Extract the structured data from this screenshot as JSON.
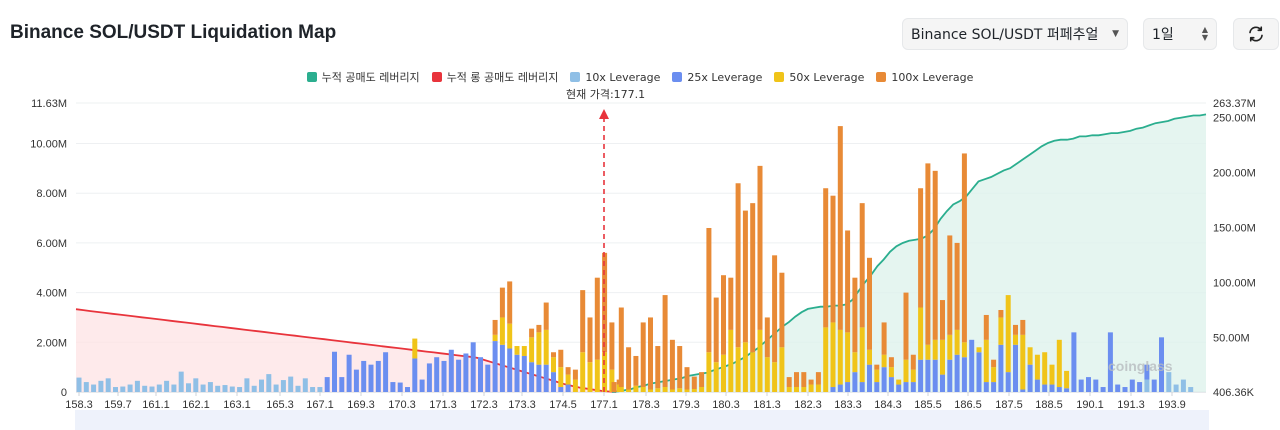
{
  "header": {
    "title": "Binance SOL/USDT Liquidation Map",
    "market_select": "Binance SOL/USDT 퍼페추얼",
    "period_select": "1일",
    "refresh_icon": "refresh-icon"
  },
  "legend": {
    "items": [
      {
        "label": "누적 공매도 레버리지",
        "color": "#2bae8f"
      },
      {
        "label": "누적 롱 공매도 레버리지",
        "color": "#e8343c"
      },
      {
        "label": "10x Leverage",
        "color": "#8fbfe6"
      },
      {
        "label": "25x Leverage",
        "color": "#6b8ef0"
      },
      {
        "label": "50x Leverage",
        "color": "#f0c419"
      },
      {
        "label": "100x Leverage",
        "color": "#e88a36"
      }
    ]
  },
  "current_price_label": "현재 가격:177.1",
  "watermark": "coinglass",
  "chart_data": {
    "type": "bar",
    "current_price": 177.1,
    "x_tick_labels": [
      "158.3",
      "159.7",
      "161.1",
      "162.1",
      "163.1",
      "165.3",
      "167.1",
      "169.3",
      "170.3",
      "171.3",
      "172.3",
      "173.3",
      "174.5",
      "177.1",
      "178.3",
      "179.3",
      "180.3",
      "181.3",
      "182.3",
      "183.3",
      "184.3",
      "185.5",
      "186.5",
      "187.5",
      "188.5",
      "190.1",
      "191.3",
      "193.9"
    ],
    "y_left_ticks": [
      "0",
      "2.00M",
      "4.00M",
      "6.00M",
      "8.00M",
      "10.00M",
      "11.63M"
    ],
    "y_left_values": [
      0,
      2,
      4,
      6,
      8,
      10,
      11.63
    ],
    "y_right_ticks": [
      "406.36K",
      "50.00M",
      "100.00M",
      "150.00M",
      "200.00M",
      "250.00M",
      "263.37M"
    ],
    "y_right_values": [
      0.40636,
      50,
      100,
      150,
      200,
      250,
      263.37
    ],
    "ylim_left": [
      0,
      11.63
    ],
    "ylim_right": [
      0.40636,
      263.37
    ],
    "bars_left_millions": [
      {
        "v10": 0.58
      },
      {
        "v10": 0.4
      },
      {
        "v10": 0.3
      },
      {
        "v10": 0.45
      },
      {
        "v10": 0.55
      },
      {
        "v10": 0.2
      },
      {
        "v10": 0.22
      },
      {
        "v10": 0.3
      },
      {
        "v10": 0.45
      },
      {
        "v10": 0.25
      },
      {
        "v10": 0.22
      },
      {
        "v10": 0.3
      },
      {
        "v10": 0.45
      },
      {
        "v10": 0.3
      },
      {
        "v10": 0.82
      },
      {
        "v10": 0.35
      },
      {
        "v10": 0.55
      },
      {
        "v10": 0.3
      },
      {
        "v10": 0.4
      },
      {
        "v10": 0.25
      },
      {
        "v10": 0.28
      },
      {
        "v10": 0.22
      },
      {
        "v10": 0.2
      },
      {
        "v10": 0.55
      },
      {
        "v10": 0.25
      },
      {
        "v10": 0.5
      },
      {
        "v10": 0.72
      },
      {
        "v10": 0.3
      },
      {
        "v10": 0.48
      },
      {
        "v10": 0.62
      },
      {
        "v10": 0.25
      },
      {
        "v10": 0.55
      },
      {
        "v10": 0.2
      },
      {
        "v10": 0.2
      },
      {
        "v25": 0.6
      },
      {
        "v25": 1.62
      },
      {
        "v25": 0.6
      },
      {
        "v25": 1.5
      },
      {
        "v25": 0.9
      },
      {
        "v25": 1.25
      },
      {
        "v25": 1.1
      },
      {
        "v25": 1.25
      },
      {
        "v25": 1.6
      },
      {
        "v25": 0.4
      },
      {
        "v25": 0.38
      },
      {
        "v25": 0.2
      },
      {
        "v25": 1.35,
        "v50": 0.8
      },
      {
        "v25": 0.5
      },
      {
        "v25": 1.15
      },
      {
        "v25": 1.4
      },
      {
        "v25": 1.25
      },
      {
        "v25": 1.7
      },
      {
        "v25": 1.3
      },
      {
        "v25": 1.55
      },
      {
        "v25": 2.0
      },
      {
        "v25": 1.4
      },
      {
        "v25": 1.1
      },
      {
        "v25": 2.05,
        "v50": 0.25,
        "v100": 0.6
      },
      {
        "v25": 1.9,
        "v50": 1.1,
        "v100": 1.2
      },
      {
        "v25": 1.75,
        "v50": 1.0,
        "v100": 1.7
      },
      {
        "v25": 1.5,
        "v50": 0.35
      },
      {
        "v25": 1.45,
        "v50": 0.4
      },
      {
        "v25": 1.2,
        "v50": 1.0,
        "v100": 0.35
      },
      {
        "v25": 1.1,
        "v50": 1.3,
        "v100": 0.3
      },
      {
        "v25": 1.1,
        "v50": 1.4,
        "v100": 1.1
      },
      {
        "v25": 0.8,
        "v50": 0.6,
        "v100": 0.2
      },
      {
        "v25": 0.2,
        "v50": 0.8,
        "v100": 0.7
      },
      {
        "v25": 0.3,
        "v50": 0.4,
        "v100": 0.3
      },
      {
        "v50": 0.5,
        "v100": 0.4
      },
      {
        "v50": 1.6,
        "v100": 2.5
      },
      {
        "v50": 1.2,
        "v100": 1.8
      },
      {
        "v50": 1.3,
        "v100": 3.3
      },
      {
        "v50": 1.6,
        "v100": 4.0
      },
      {
        "v50": 0.9,
        "v100": 1.9
      },
      {
        "v50": 0.3,
        "v100": 0.2
      }
    ],
    "bars_right_millions": [
      {
        "v100": 0.4
      },
      {
        "v50": 0.2,
        "v100": 3.2
      },
      {
        "v50": 0.1,
        "v100": 1.7
      },
      {
        "v50": 0.25,
        "v100": 1.2
      },
      {
        "v50": 0.2,
        "v100": 2.6
      },
      {
        "v50": 0.1,
        "v100": 2.9
      },
      {
        "v50": 0.15,
        "v100": 1.7
      },
      {
        "v50": 0.2,
        "v100": 3.7
      },
      {
        "v50": 0.1,
        "v100": 2.0
      },
      {
        "v50": 0.15,
        "v100": 1.7
      },
      {
        "v50": 0.1,
        "v100": 0.9
      },
      {
        "v50": 0.12,
        "v100": 0.5
      },
      {
        "v50": 0.2,
        "v100": 0.6
      },
      {
        "v50": 1.6,
        "v100": 5.0
      },
      {
        "v50": 1.2,
        "v100": 2.6
      },
      {
        "v50": 1.5,
        "v100": 3.2
      },
      {
        "v50": 2.5,
        "v100": 2.1
      },
      {
        "v50": 1.8,
        "v100": 6.6
      },
      {
        "v50": 2.0,
        "v100": 5.3
      },
      {
        "v50": 1.6,
        "v100": 6.0
      },
      {
        "v50": 2.5,
        "v100": 6.6
      },
      {
        "v50": 1.4,
        "v100": 1.6
      },
      {
        "v50": 1.2,
        "v100": 4.3
      },
      {
        "v50": 1.8,
        "v100": 3.0
      },
      {
        "v50": 0.2,
        "v100": 0.4
      },
      {
        "v50": 0.2,
        "v100": 0.6
      },
      {
        "v50": 0.2,
        "v100": 0.6
      },
      {
        "v50": 0.3,
        "v100": 0.2
      },
      {
        "v50": 0.3,
        "v100": 0.5
      },
      {
        "v50": 2.6,
        "v100": 5.6
      },
      {
        "v25": 0.2,
        "v50": 2.6,
        "v100": 5.1
      },
      {
        "v25": 0.3,
        "v50": 2.2,
        "v100": 8.2
      },
      {
        "v25": 0.4,
        "v50": 2.0,
        "v100": 4.1
      },
      {
        "v25": 0.8,
        "v50": 0.8,
        "v100": 3.0
      },
      {
        "v25": 0.4,
        "v50": 2.2,
        "v100": 5.0
      },
      {
        "v25": 1.1,
        "v50": 0.6,
        "v100": 3.7
      },
      {
        "v25": 0.4,
        "v50": 0.5,
        "v100": 0.2
      },
      {
        "v25": 1.0,
        "v50": 0.5,
        "v100": 1.3
      },
      {
        "v25": 0.6,
        "v50": 0.4,
        "v100": 0.4
      },
      {
        "v25": 0.3,
        "v50": 0.2
      },
      {
        "v25": 0.4,
        "v50": 0.9,
        "v100": 2.7
      },
      {
        "v25": 0.4,
        "v50": 0.5,
        "v100": 0.6
      },
      {
        "v25": 1.3,
        "v50": 2.1,
        "v100": 4.8
      },
      {
        "v25": 1.3,
        "v50": 0.6,
        "v100": 7.3
      },
      {
        "v25": 1.3,
        "v50": 0.8,
        "v100": 6.8
      },
      {
        "v25": 0.7,
        "v50": 1.4,
        "v100": 1.6
      },
      {
        "v25": 1.3,
        "v50": 1.0,
        "v100": 4.0
      },
      {
        "v25": 1.5,
        "v50": 1.0,
        "v100": 3.5
      },
      {
        "v25": 1.4,
        "v50": 0.6,
        "v100": 7.6
      },
      {
        "v25": 2.1
      },
      {
        "v25": 1.6,
        "v50": 0.2
      },
      {
        "v25": 0.4,
        "v50": 1.7,
        "v100": 1.0
      },
      {
        "v25": 0.4,
        "v50": 0.6,
        "v100": 0.3
      },
      {
        "v25": 1.9,
        "v50": 1.1,
        "v100": 0.3
      },
      {
        "v25": 0.8,
        "v50": 3.1
      },
      {
        "v25": 1.9,
        "v50": 0.4,
        "v100": 0.4
      },
      {
        "v25": 0.1,
        "v50": 2.2,
        "v100": 0.6
      },
      {
        "v25": 1.1,
        "v50": 0.7
      },
      {
        "v25": 0.5,
        "v50": 1.0
      },
      {
        "v25": 0.3,
        "v50": 1.3
      },
      {
        "v25": 0.3,
        "v50": 0.8
      },
      {
        "v25": 0.2,
        "v50": 1.9
      },
      {
        "v25": 0.15,
        "v50": 0.7
      },
      {
        "v25": 2.4
      },
      {
        "v25": 0.5
      },
      {
        "v25": 0.6
      },
      {
        "v25": 0.5
      },
      {
        "v25": 0.2
      },
      {
        "v25": 2.4
      },
      {
        "v25": 0.3
      },
      {
        "v25": 0.2
      },
      {
        "v25": 0.5
      },
      {
        "v25": 0.4
      },
      {
        "v25": 0.6,
        "v10": 0.5
      },
      {
        "v25": 0.5
      },
      {
        "v25": 2.2
      },
      {
        "v10": 0.8
      },
      {
        "v10": 0.3
      },
      {
        "v10": 0.5
      },
      {
        "v10": 0.2
      }
    ],
    "cumulative_short_millions": [
      0.4,
      1,
      2,
      3,
      5,
      6,
      8,
      9,
      10,
      11,
      12,
      13,
      15,
      16,
      17,
      18,
      20,
      22,
      24,
      26,
      29,
      32,
      36,
      40,
      45,
      50,
      55,
      60,
      64,
      69,
      73,
      76,
      77,
      78,
      78,
      79,
      79,
      80,
      84,
      92,
      100,
      107,
      115,
      121,
      128,
      133,
      136,
      138,
      139,
      140,
      143,
      149,
      158,
      165,
      171,
      174,
      178,
      185,
      192,
      194,
      196,
      199,
      202,
      204,
      208,
      212,
      216,
      220,
      224,
      227,
      229,
      230,
      230,
      231,
      233,
      233,
      234,
      234,
      235,
      236,
      236,
      237,
      238,
      240,
      241,
      243,
      245,
      246,
      247,
      249,
      250,
      251,
      252,
      252,
      253
    ],
    "cumulative_long_millions": [
      75.3,
      74.5,
      73.6,
      72.8,
      72.0,
      71.2,
      70.4,
      69.6,
      68.8,
      68.0,
      67.2,
      66.4,
      65.6,
      64.8,
      64.0,
      63.2,
      62.4,
      61.6,
      60.8,
      60.0,
      59.2,
      58.4,
      57.6,
      56.8,
      56.0,
      55.2,
      54.4,
      53.6,
      52.8,
      52.0,
      51.2,
      50.4,
      49.6,
      48.8,
      48.0,
      47.2,
      46.4,
      45.6,
      44.8,
      44.0,
      43.2,
      42.4,
      41.6,
      40.8,
      40.0,
      39.2,
      38.4,
      37.6,
      36.8,
      36.0,
      35.2,
      34.4,
      33.6,
      32.8,
      32.0,
      31.0,
      29.0,
      27.0,
      25.0,
      23.0,
      21.0,
      19.0,
      17.0,
      15.0,
      13.0,
      11.0,
      9.0,
      7.0,
      5.5,
      4.0,
      3.0,
      2.0,
      1.0,
      0.5,
      0.0
    ]
  }
}
